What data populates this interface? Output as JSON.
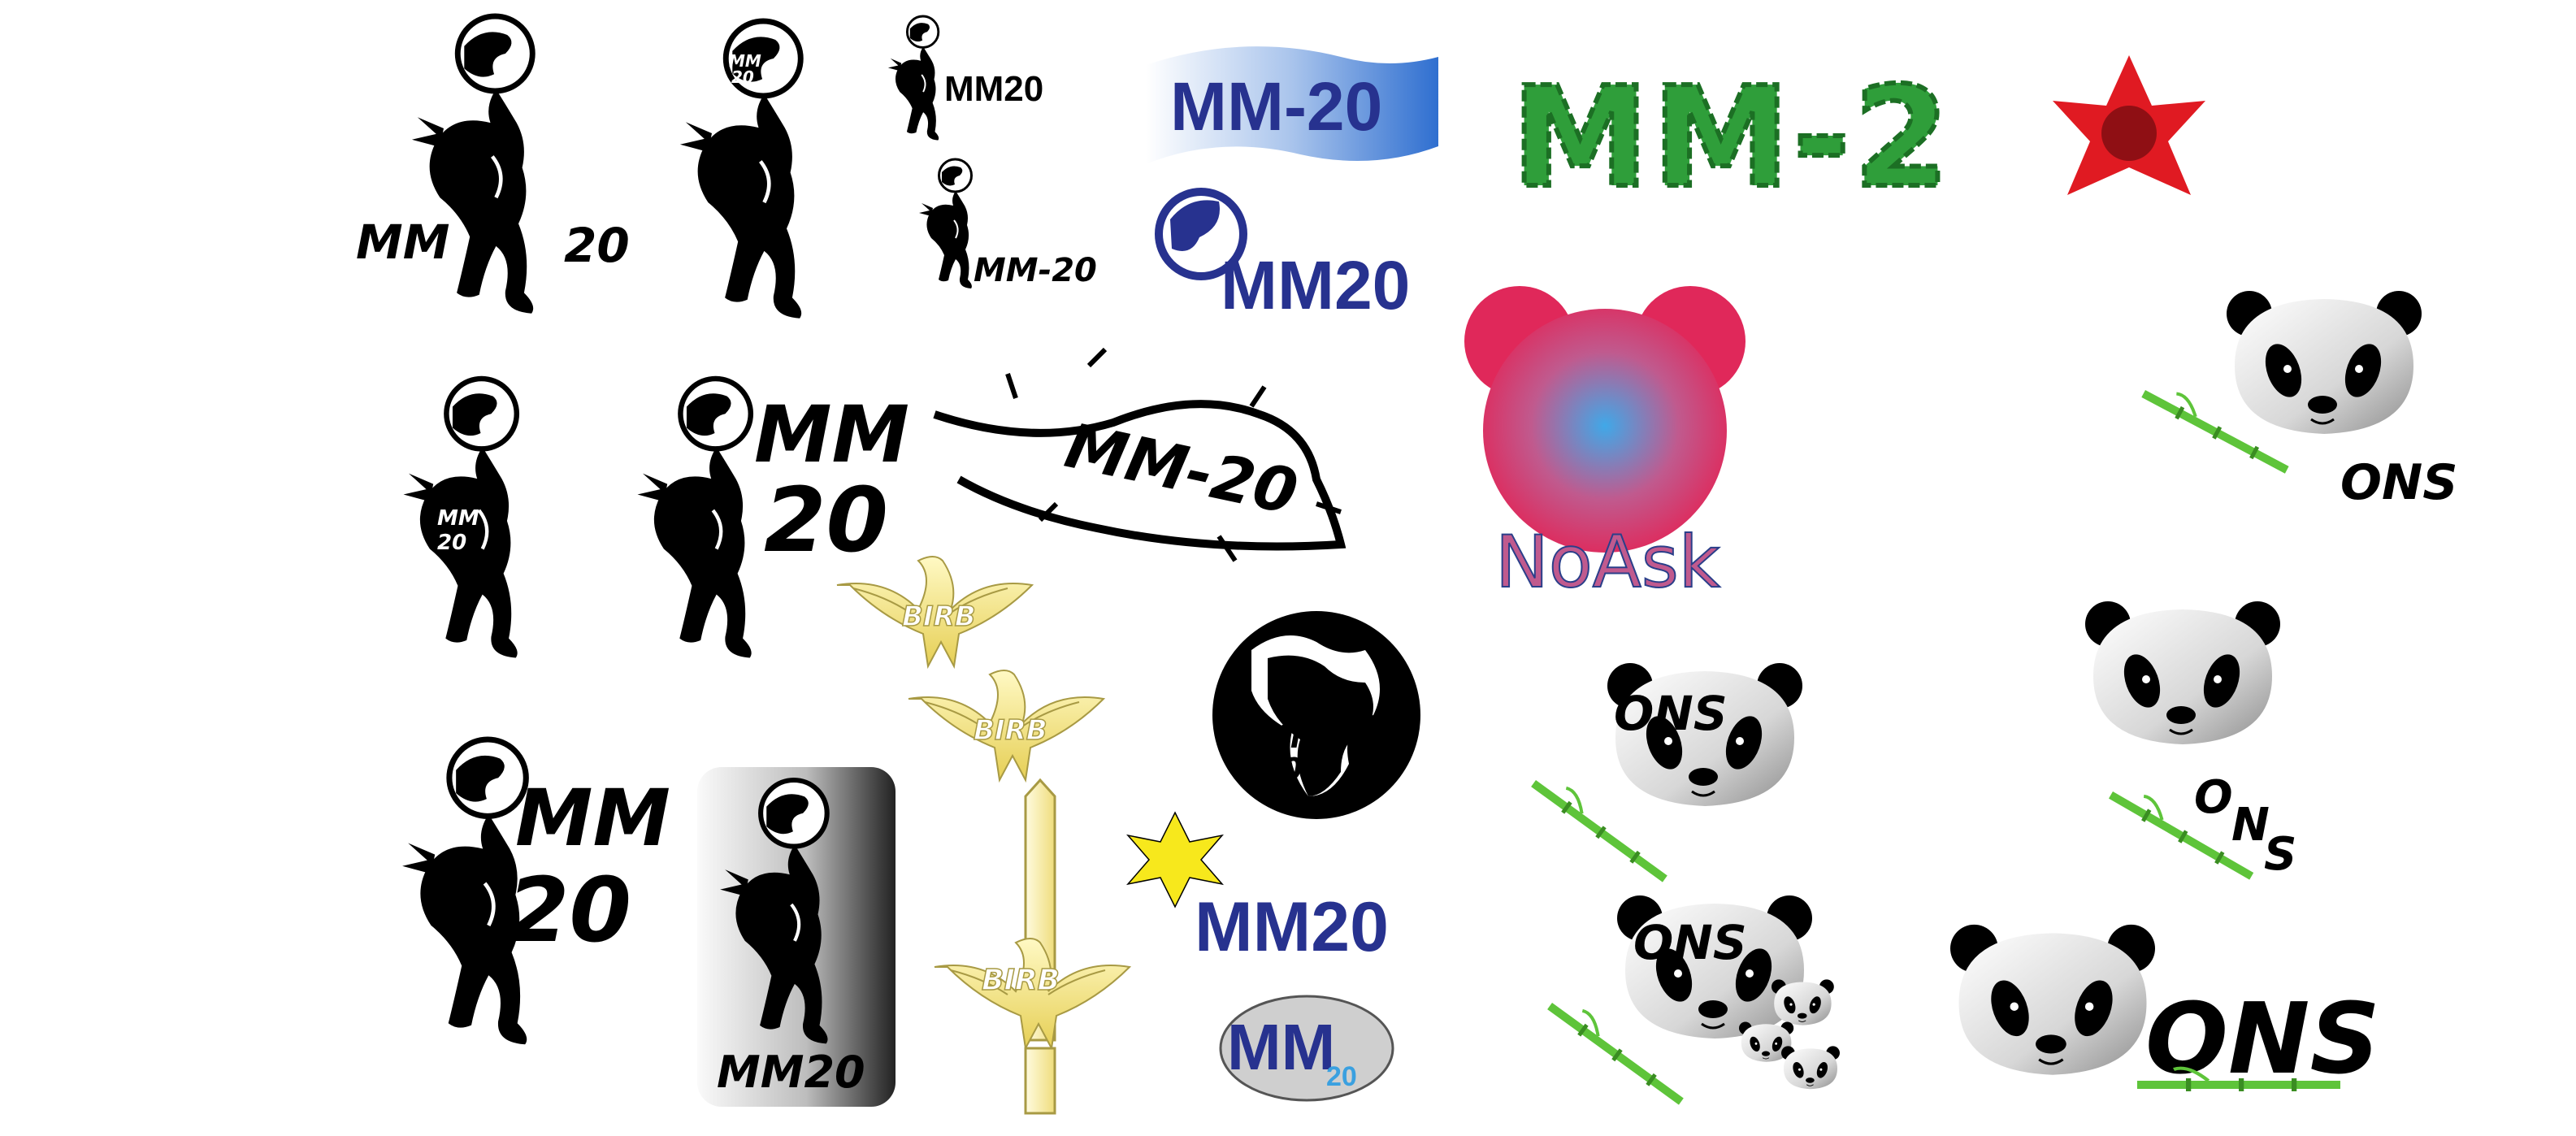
{
  "sheet": {
    "description_labels": {
      "mm20_spaced": [
        "MM",
        "20"
      ],
      "mm20_caps": "MM20",
      "mm20_dash": "MM-20",
      "mm20_brush": "MM-20",
      "mm20_brush_small": "MM-20",
      "mm20_on_body": [
        "MM",
        "20"
      ],
      "birb": "BIRB",
      "noask": "NoAsk",
      "ons": "ONS",
      "ons_spaced": [
        "O",
        "N",
        "S"
      ],
      "ivy_text": "MM-2"
    }
  },
  "colors": {
    "black": "#000000",
    "blue_dark": "#27328f",
    "blue_light": "#3aa0e0",
    "ivy_green": "#2f9e3a",
    "bamboo_green": "#5ec43a",
    "flower_red": "#c0161c",
    "noask_pink": "#e0285a",
    "noask_center": "#40a8e8",
    "birb_yellow": "#f2e27a",
    "star_yellow": "#f7e81c"
  }
}
